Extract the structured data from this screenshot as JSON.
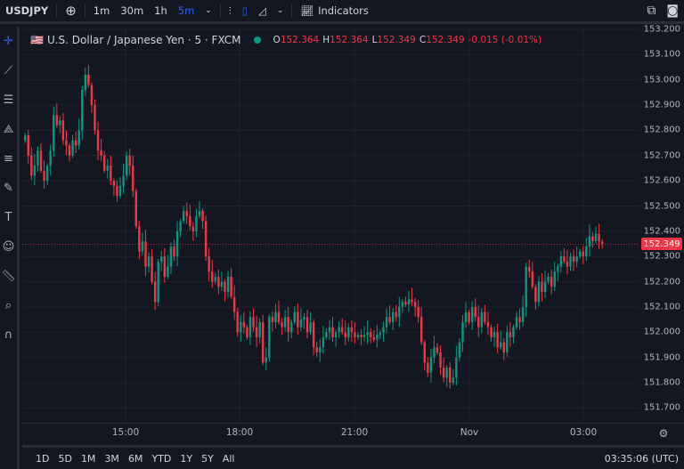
{
  "toolbar": {
    "symbol": "USDJPY",
    "add_icon": "plus-circle-icon",
    "intervals": [
      "1m",
      "30m",
      "1h",
      "5m"
    ],
    "active_interval": "5m",
    "indicators_label": "Indicators",
    "icons": [
      "bar-chart-icon",
      "candles-icon",
      "area-chart-icon",
      "fullscreen-icon",
      "camera-icon"
    ]
  },
  "left_tools": [
    "crosshair-icon",
    "trend-line-icon",
    "fib-icon",
    "pattern-icon",
    "forecast-icon",
    "brush-icon",
    "text-icon",
    "emoji-icon",
    "ruler-icon",
    "zoom-icon",
    "magnet-icon"
  ],
  "legend": {
    "title": "U.S. Dollar / Japanese Yen · 5 · FXCM",
    "o_label": "O",
    "o": "152.364",
    "h_label": "H",
    "h": "152.364",
    "l_label": "L",
    "l": "152.349",
    "c_label": "C",
    "c": "152.349",
    "change": "-0.015 (-0.01%)",
    "status_color": "#089981"
  },
  "current_price": "152.349",
  "time_labels": [
    "15:00",
    "18:00",
    "21:00",
    "Nov",
    "03:00"
  ],
  "ranges": [
    "1D",
    "5D",
    "1M",
    "3M",
    "6M",
    "YTD",
    "1Y",
    "5Y",
    "All"
  ],
  "clock": "03:35:06 (UTC)",
  "colors": {
    "up": "#089981",
    "down": "#f23645",
    "background": "#131722",
    "accent": "#2962ff"
  },
  "chart_data": {
    "type": "candlestick",
    "interval": "5m",
    "first_time": "12:20",
    "y_ticks": [
      "153.200",
      "153.100",
      "153.000",
      "152.900",
      "152.800",
      "152.700",
      "152.600",
      "152.500",
      "152.400",
      "152.300",
      "152.200",
      "152.100",
      "152.000",
      "151.900",
      "151.800",
      "151.700"
    ],
    "ylim": [
      151.65,
      153.22
    ],
    "grid": true,
    "first_open": 152.76,
    "closes": [
      152.78,
      152.7,
      152.62,
      152.66,
      152.72,
      152.64,
      152.6,
      152.66,
      152.72,
      152.86,
      152.82,
      152.84,
      152.76,
      152.74,
      152.7,
      152.76,
      152.74,
      152.8,
      152.96,
      153.02,
      152.98,
      152.9,
      152.8,
      152.72,
      152.7,
      152.64,
      152.66,
      152.6,
      152.58,
      152.54,
      152.58,
      152.62,
      152.7,
      152.66,
      152.56,
      152.42,
      152.32,
      152.36,
      152.26,
      152.3,
      152.2,
      152.12,
      152.28,
      152.3,
      152.22,
      152.26,
      152.34,
      152.3,
      152.4,
      152.44,
      152.48,
      152.46,
      152.42,
      152.4,
      152.46,
      152.48,
      152.44,
      152.3,
      152.24,
      152.2,
      152.22,
      152.18,
      152.2,
      152.16,
      152.22,
      152.14,
      152.08,
      152.0,
      152.04,
      152.02,
      151.98,
      152.06,
      152.02,
      151.98,
      152.04,
      151.88,
      151.9,
      152.06,
      152.04,
      152.08,
      152.04,
      152.02,
      152.06,
      152.0,
      152.04,
      152.08,
      152.02,
      152.05,
      152.06,
      152.0,
      152.04,
      151.94,
      151.92,
      151.94,
      151.98,
      152.0,
      152.02,
      151.98,
      152.0,
      152.02,
      152.0,
      151.98,
      152.02,
      152.0,
      151.98,
      151.99,
      151.98,
      151.99,
      152.0,
      151.98,
      151.97,
      151.99,
      152.0,
      152.02,
      152.06,
      152.04,
      152.08,
      152.06,
      152.1,
      152.12,
      152.11,
      152.13,
      152.12,
      152.1,
      152.06,
      151.96,
      151.88,
      151.84,
      151.9,
      151.94,
      151.92,
      151.86,
      151.82,
      151.86,
      151.8,
      151.82,
      151.9,
      151.96,
      152.04,
      152.08,
      152.04,
      152.1,
      152.06,
      152.02,
      152.08,
      152.04,
      152.02,
      151.98,
      152.0,
      151.94,
      151.96,
      151.92,
      152.0,
      151.98,
      152.02,
      152.06,
      152.04,
      152.1,
      152.26,
      152.24,
      152.18,
      152.12,
      152.2,
      152.16,
      152.2,
      152.22,
      152.18,
      152.24,
      152.26,
      152.3,
      152.28,
      152.26,
      152.3,
      152.28,
      152.3,
      152.32,
      152.3,
      152.34,
      152.38,
      152.36,
      152.39,
      152.36,
      152.349
    ]
  }
}
